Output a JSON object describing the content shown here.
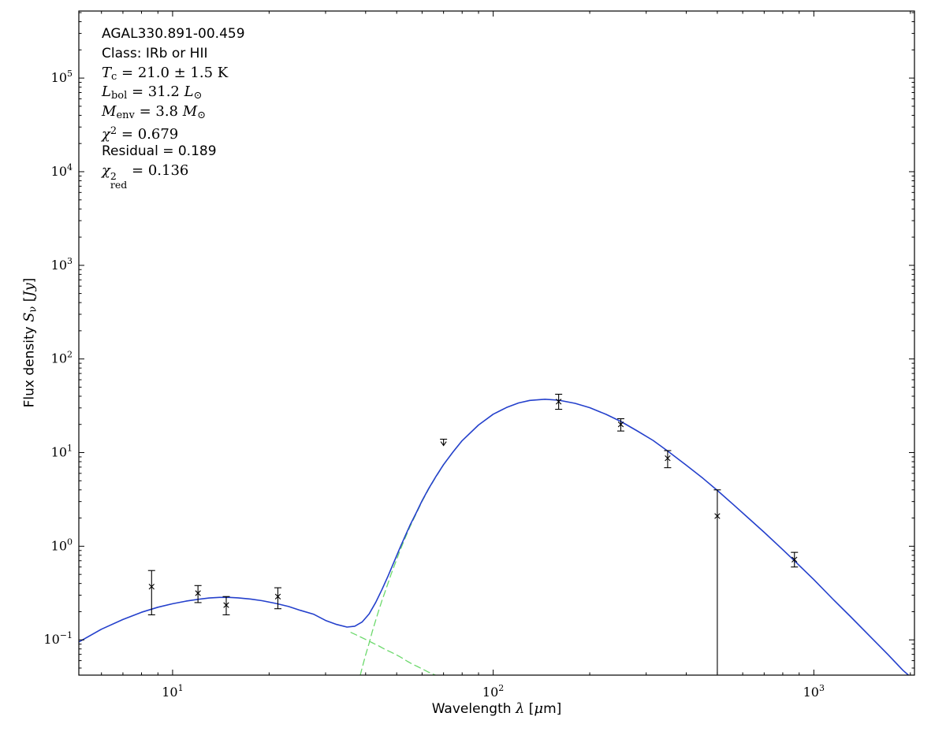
{
  "figure": {
    "background": "#ffffff",
    "frame_color": "#000000"
  },
  "chart_data": {
    "type": "line",
    "title": "",
    "xlabel_plain": "Wavelength λ [μm]",
    "ylabel_plain": "Flux density Sν [Jy]",
    "xlabel_rich": [
      {
        "t": "Wavelength ",
        "s": "sans"
      },
      {
        "t": "λ",
        "s": "mi"
      },
      {
        "t": " [",
        "s": "sans"
      },
      {
        "t": "μ",
        "s": "mi"
      },
      {
        "t": "m]",
        "s": "sans"
      }
    ],
    "ylabel_rich": [
      {
        "t": "Flux density ",
        "s": "sans"
      },
      {
        "t": "S",
        "s": "mi"
      },
      {
        "t": "ν",
        "s": "msub"
      },
      {
        "t": " [",
        "s": "sans"
      },
      {
        "t": "Jy",
        "s": "mi"
      },
      {
        "t": "]",
        "s": "sans"
      }
    ],
    "xscale": "log",
    "yscale": "log",
    "log_base": 10,
    "xlim": [
      5.1,
      2060
    ],
    "ylim": [
      0.042,
      520000
    ],
    "x_tick_exponents": [
      1,
      2,
      3
    ],
    "y_tick_exponents": [
      -1,
      0,
      1,
      2,
      3,
      4,
      5
    ],
    "grid": false,
    "legend": "none",
    "marker": {
      "symbol": "x",
      "color": "#000000"
    },
    "series": [
      {
        "name": "warm-component",
        "role": "model component (dashed)",
        "color": "#6cd96c",
        "style": "dashed",
        "width": 1.3,
        "points": [
          [
            36,
            0.12
          ],
          [
            38,
            0.11
          ],
          [
            40,
            0.101
          ],
          [
            42,
            0.093
          ],
          [
            44,
            0.086
          ],
          [
            46,
            0.079
          ],
          [
            48,
            0.074
          ],
          [
            50,
            0.069
          ],
          [
            52,
            0.064
          ],
          [
            54,
            0.059
          ],
          [
            56,
            0.055
          ],
          [
            58,
            0.052
          ],
          [
            60,
            0.049
          ],
          [
            63,
            0.045
          ],
          [
            66,
            0.042
          ],
          [
            69,
            0.039
          ]
        ]
      },
      {
        "name": "cold-component",
        "role": "model component (dashed)",
        "color": "#6cd96c",
        "style": "dashed",
        "width": 1.3,
        "points": [
          [
            38.5,
            0.042
          ],
          [
            39,
            0.05
          ],
          [
            40,
            0.069
          ],
          [
            41,
            0.092
          ],
          [
            42,
            0.124
          ],
          [
            43,
            0.162
          ],
          [
            44,
            0.208
          ],
          [
            45,
            0.264
          ],
          [
            46,
            0.327
          ],
          [
            47,
            0.405
          ],
          [
            48,
            0.499
          ],
          [
            49,
            0.602
          ],
          [
            51,
            0.867
          ],
          [
            53,
            1.2
          ],
          [
            55,
            1.61
          ],
          [
            57.5,
            2.22
          ],
          [
            60,
            3.01
          ],
          [
            63,
            4.11
          ],
          [
            66,
            5.38
          ],
          [
            70,
            7.4
          ],
          [
            75,
            10.2
          ],
          [
            80,
            13.4
          ]
        ]
      },
      {
        "name": "model-total",
        "role": "best-fit SED (solid)",
        "color": "#2440cc",
        "style": "solid",
        "width": 1.6,
        "points": [
          [
            5.1,
            0.095
          ],
          [
            6,
            0.13
          ],
          [
            7,
            0.165
          ],
          [
            8,
            0.197
          ],
          [
            9,
            0.223
          ],
          [
            10,
            0.243
          ],
          [
            11,
            0.259
          ],
          [
            12,
            0.271
          ],
          [
            13,
            0.28
          ],
          [
            14,
            0.284
          ],
          [
            15,
            0.284
          ],
          [
            16,
            0.281
          ],
          [
            17.5,
            0.273
          ],
          [
            19,
            0.262
          ],
          [
            21,
            0.245
          ],
          [
            23,
            0.227
          ],
          [
            25,
            0.207
          ],
          [
            27.5,
            0.188
          ],
          [
            30,
            0.161
          ],
          [
            32.5,
            0.146
          ],
          [
            35,
            0.137
          ],
          [
            37,
            0.14
          ],
          [
            39,
            0.155
          ],
          [
            41,
            0.189
          ],
          [
            43,
            0.251
          ],
          [
            45,
            0.346
          ],
          [
            47,
            0.481
          ],
          [
            49,
            0.673
          ],
          [
            51,
            0.933
          ],
          [
            53,
            1.26
          ],
          [
            55,
            1.67
          ],
          [
            57.5,
            2.27
          ],
          [
            60,
            3.06
          ],
          [
            63,
            4.16
          ],
          [
            66,
            5.42
          ],
          [
            70,
            7.44
          ],
          [
            75,
            10.2
          ],
          [
            80,
            13.4
          ],
          [
            90,
            19.7
          ],
          [
            100,
            25.7
          ],
          [
            110,
            30.3
          ],
          [
            120,
            33.9
          ],
          [
            130,
            36.1
          ],
          [
            145,
            37.1
          ],
          [
            160,
            36.3
          ],
          [
            180,
            33.6
          ],
          [
            200,
            30.2
          ],
          [
            225,
            25.6
          ],
          [
            250,
            21.5
          ],
          [
            280,
            17.2
          ],
          [
            315,
            13.5
          ],
          [
            350,
            10.4
          ],
          [
            400,
            7.33
          ],
          [
            450,
            5.35
          ],
          [
            500,
            3.95
          ],
          [
            560,
            2.8
          ],
          [
            630,
            1.95
          ],
          [
            700,
            1.41
          ],
          [
            800,
            0.92
          ],
          [
            870,
            0.7
          ],
          [
            1000,
            0.44
          ],
          [
            1150,
            0.27
          ],
          [
            1300,
            0.178
          ],
          [
            1500,
            0.108
          ],
          [
            1700,
            0.07
          ],
          [
            1900,
            0.047
          ],
          [
            2060,
            0.037
          ]
        ]
      }
    ],
    "data_points": [
      {
        "x": 8.6,
        "y": 0.37,
        "lo": 0.185,
        "hi": 0.55
      },
      {
        "x": 12,
        "y": 0.315,
        "lo": 0.25,
        "hi": 0.38
      },
      {
        "x": 14.7,
        "y": 0.235,
        "lo": 0.185,
        "hi": 0.29
      },
      {
        "x": 21.3,
        "y": 0.29,
        "lo": 0.215,
        "hi": 0.36
      },
      {
        "x": 70,
        "y": 13.2,
        "lo": 11.9,
        "hi": 13.9,
        "upper_limit": true
      },
      {
        "x": 160,
        "y": 35,
        "lo": 29,
        "hi": 42
      },
      {
        "x": 250,
        "y": 20,
        "lo": 17,
        "hi": 23
      },
      {
        "x": 350,
        "y": 8.7,
        "lo": 6.9,
        "hi": 10.5
      },
      {
        "x": 500,
        "y": 2.1,
        "lo": 0.043,
        "hi": 4.0,
        "lo_cap": false
      },
      {
        "x": 870,
        "y": 0.72,
        "lo": 0.6,
        "hi": 0.86
      }
    ],
    "annotation": {
      "lines_plain": [
        "AGAL330.891-00.459",
        "Class: IRb or HII",
        "Tc = 21.0 ± 1.5 K",
        "Lbol = 31.2 L⊙",
        "Menv = 3.8 M⊙",
        "χ2 = 0.679",
        "Residual = 0.189",
        "χ2red = 0.136"
      ],
      "lines_rich": [
        [
          {
            "t": "AGAL330.891-00.459",
            "s": "sans"
          }
        ],
        [
          {
            "t": "Class: IRb or HII",
            "s": "sans"
          }
        ],
        [
          {
            "t": "T",
            "s": "mi"
          },
          {
            "t": "c",
            "s": "msub"
          },
          {
            "t": " = 21.0 ± 1.5 K",
            "s": "mr"
          }
        ],
        [
          {
            "t": "L",
            "s": "mi"
          },
          {
            "t": "bol",
            "s": "msub"
          },
          {
            "t": " = 31.2 ",
            "s": "mr"
          },
          {
            "t": "L",
            "s": "mi"
          },
          {
            "t": "⊙",
            "s": "msub"
          }
        ],
        [
          {
            "t": "M",
            "s": "mi"
          },
          {
            "t": "env",
            "s": "msub"
          },
          {
            "t": " = 3.8 ",
            "s": "mr"
          },
          {
            "t": "M",
            "s": "mi"
          },
          {
            "t": "⊙",
            "s": "msub"
          }
        ],
        [
          {
            "t": "χ",
            "s": "mi"
          },
          {
            "t": "2",
            "s": "msup"
          },
          {
            "t": " = 0.679",
            "s": "mr"
          }
        ],
        [
          {
            "t": "Residual = 0.189",
            "s": "sans"
          }
        ],
        [
          {
            "t": "χ",
            "s": "mi"
          },
          {
            "sup": "2",
            "sub": "red"
          },
          {
            "t": " = 0.136",
            "s": "mr"
          }
        ]
      ]
    }
  }
}
